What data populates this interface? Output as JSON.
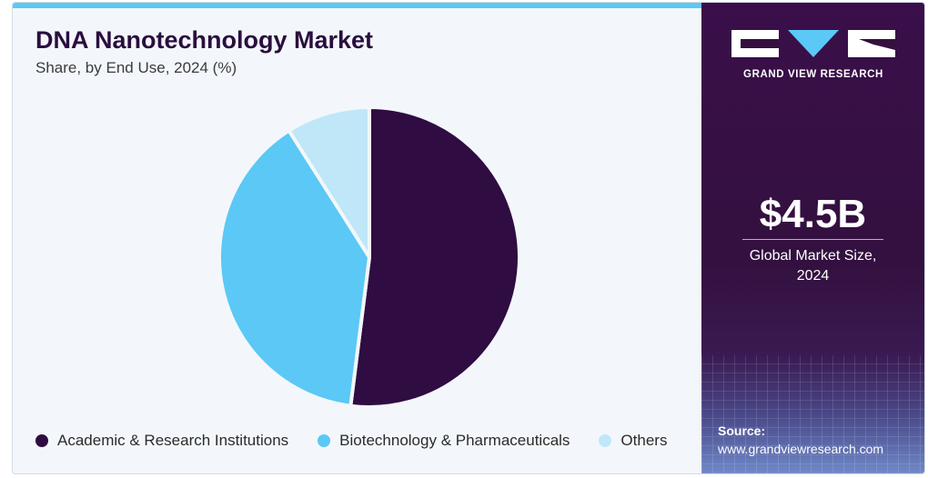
{
  "title": "DNA Nanotechnology Market",
  "subtitle": "Share, by End Use, 2024 (%)",
  "brand": {
    "name": "GRAND VIEW RESEARCH"
  },
  "stat": {
    "value": "$4.5B",
    "label": "Global Market Size, 2024"
  },
  "source": {
    "label": "Source:",
    "url": "www.grandviewresearch.com"
  },
  "colors": {
    "academic": "#2f0c41",
    "biotech": "#5bc8f5",
    "others": "#bfe7f8",
    "panel": "#35103f",
    "accent": "#5bc8f5"
  },
  "chart_data": {
    "type": "pie",
    "title": "DNA Nanotechnology Market",
    "subtitle": "Share, by End Use, 2024 (%)",
    "start_angle_deg": 0,
    "direction": "clockwise",
    "legend_position": "bottom",
    "slices": [
      {
        "label": "Academic & Research Institutions",
        "value": 52,
        "color": "#2f0c41"
      },
      {
        "label": "Biotechnology & Pharmaceuticals",
        "value": 39,
        "color": "#5bc8f5"
      },
      {
        "label": "Others",
        "value": 9,
        "color": "#bfe7f8"
      }
    ]
  }
}
